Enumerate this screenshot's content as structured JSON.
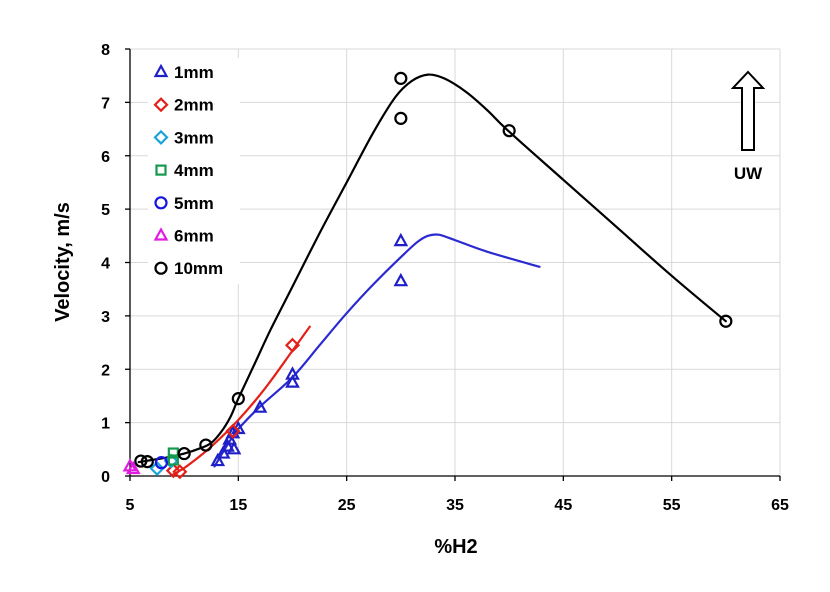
{
  "chart_data": {
    "type": "scatter",
    "xlabel": "%H2",
    "ylabel": "Velocity, m/s",
    "xlim": [
      5,
      65
    ],
    "ylim": [
      0,
      8
    ],
    "xticks": [
      5,
      15,
      25,
      35,
      45,
      55,
      65
    ],
    "yticks": [
      0,
      1,
      2,
      3,
      4,
      5,
      6,
      7,
      8
    ],
    "grid": true,
    "legend_position": "top-left",
    "series": [
      {
        "name": "1mm",
        "marker": "triangle",
        "color": "#2020c8",
        "points": [
          [
            13.1,
            0.28
          ],
          [
            13.6,
            0.42
          ],
          [
            14.0,
            0.55
          ],
          [
            14.2,
            0.68
          ],
          [
            14.5,
            0.8
          ],
          [
            14.6,
            0.5
          ],
          [
            15,
            0.88
          ],
          [
            17,
            1.28
          ],
          [
            20,
            1.9
          ],
          [
            20,
            1.75
          ],
          [
            30,
            4.4
          ],
          [
            30,
            3.65
          ]
        ]
      },
      {
        "name": "2mm",
        "marker": "diamond",
        "color": "#e32119",
        "points": [
          [
            9,
            0.1
          ],
          [
            9.6,
            0.08
          ],
          [
            14.5,
            0.84
          ],
          [
            20,
            2.45
          ]
        ]
      },
      {
        "name": "3mm",
        "marker": "diamond",
        "color": "#1aa3d9",
        "points": [
          [
            7.5,
            0.14
          ],
          [
            8.8,
            0.28
          ]
        ]
      },
      {
        "name": "4mm",
        "marker": "square",
        "color": "#139a4d",
        "points": [
          [
            9,
            0.43
          ],
          [
            9,
            0.3
          ]
        ]
      },
      {
        "name": "5mm",
        "marker": "circle",
        "color": "#1616e0",
        "points": [
          [
            7.9,
            0.25
          ]
        ]
      },
      {
        "name": "6mm",
        "marker": "triangle",
        "color": "#e21be2",
        "points": [
          [
            5,
            0.18
          ],
          [
            5.3,
            0.13
          ]
        ]
      },
      {
        "name": "10mm",
        "marker": "circle",
        "color": "#000000",
        "points": [
          [
            6,
            0.28
          ],
          [
            6.6,
            0.27
          ],
          [
            10,
            0.42
          ],
          [
            12,
            0.58
          ],
          [
            15,
            1.45
          ],
          [
            30,
            7.45
          ],
          [
            30,
            6.7
          ],
          [
            40,
            6.47
          ],
          [
            60,
            2.9
          ]
        ]
      }
    ],
    "trendlines": [
      {
        "series": "10mm",
        "color": "#000000",
        "points": [
          [
            5.8,
            0.26
          ],
          [
            7,
            0.3
          ],
          [
            8.5,
            0.35
          ],
          [
            10,
            0.42
          ],
          [
            11.5,
            0.52
          ],
          [
            12.5,
            0.62
          ],
          [
            13.5,
            0.85
          ],
          [
            14.3,
            1.12
          ],
          [
            15,
            1.45
          ],
          [
            16.5,
            2.1
          ],
          [
            18,
            2.75
          ],
          [
            20,
            3.55
          ],
          [
            22.5,
            4.55
          ],
          [
            25,
            5.5
          ],
          [
            27.5,
            6.45
          ],
          [
            29.5,
            7.1
          ],
          [
            31,
            7.4
          ],
          [
            32.5,
            7.52
          ],
          [
            34,
            7.45
          ],
          [
            36,
            7.2
          ],
          [
            38,
            6.85
          ],
          [
            40,
            6.45
          ],
          [
            45,
            5.55
          ],
          [
            50,
            4.65
          ],
          [
            55,
            3.75
          ],
          [
            60,
            2.9
          ]
        ]
      },
      {
        "series": "1mm",
        "color": "#2a2ad0",
        "points": [
          [
            12.8,
            0.18
          ],
          [
            13.5,
            0.42
          ],
          [
            14.2,
            0.65
          ],
          [
            15,
            0.88
          ],
          [
            17,
            1.3
          ],
          [
            20,
            1.85
          ],
          [
            22.5,
            2.45
          ],
          [
            25,
            3.05
          ],
          [
            27.5,
            3.6
          ],
          [
            30,
            4.1
          ],
          [
            31.5,
            4.38
          ],
          [
            32.5,
            4.5
          ],
          [
            33.5,
            4.52
          ],
          [
            35,
            4.42
          ],
          [
            38,
            4.2
          ],
          [
            42.8,
            3.92
          ]
        ]
      },
      {
        "series": "2mm",
        "color": "#e32119",
        "points": [
          [
            9,
            0.03
          ],
          [
            10,
            0.15
          ],
          [
            11,
            0.3
          ],
          [
            12.5,
            0.55
          ],
          [
            15,
            1.05
          ],
          [
            17.5,
            1.65
          ],
          [
            20,
            2.35
          ],
          [
            21.6,
            2.8
          ]
        ]
      }
    ],
    "annotations": [
      {
        "text": "UW",
        "symbol": "up-arrow"
      }
    ]
  }
}
